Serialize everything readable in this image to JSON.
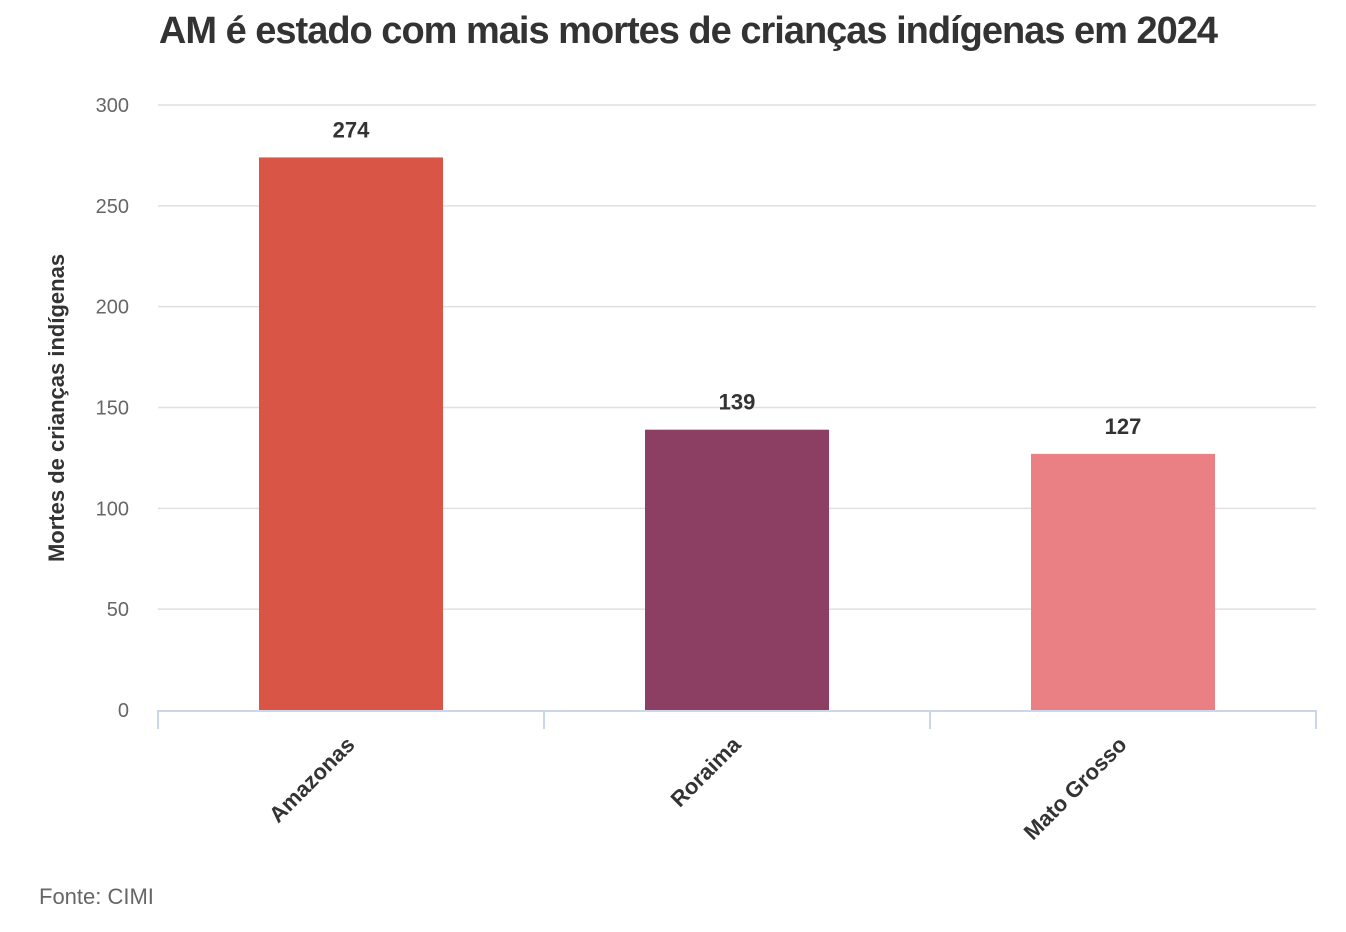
{
  "chart_data": {
    "type": "bar",
    "title": "AM é estado com mais mortes de crianças indígenas em 2024",
    "xlabel": "",
    "ylabel": "Mortes de crianças indígenas",
    "categories": [
      "Amazonas",
      "Roraima",
      "Mato Grosso"
    ],
    "values": [
      274,
      139,
      127
    ],
    "colors": [
      "#d95545",
      "#8c3f63",
      "#ea8084"
    ],
    "ylim": [
      0,
      300
    ],
    "yticks": [
      0,
      50,
      100,
      150,
      200,
      250,
      300
    ],
    "grid": true,
    "legend": "none",
    "data_labels": true
  },
  "source": "Fonte: CIMI"
}
